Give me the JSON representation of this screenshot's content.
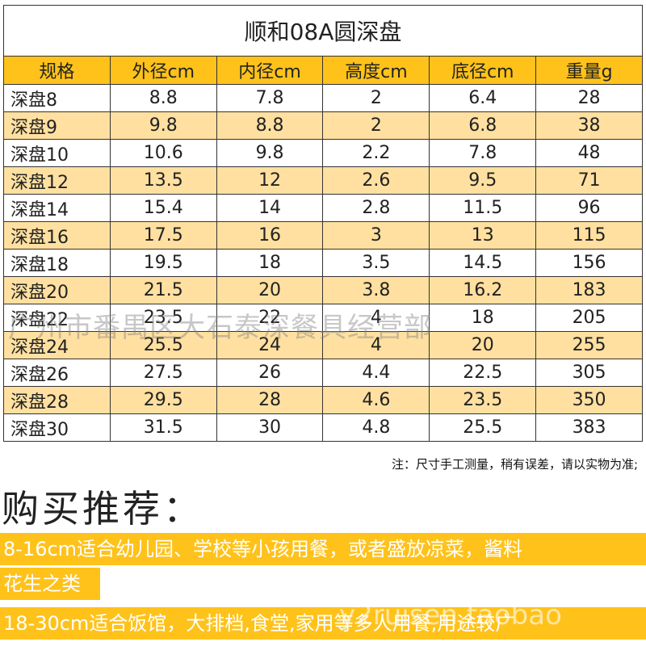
{
  "table": {
    "title": "顺和08A圆深盘",
    "headers": [
      "规格",
      "外径cm",
      "内径cm",
      "高度cm",
      "底径cm",
      "重量g"
    ],
    "rows": [
      [
        "深盘8",
        "8.8",
        "7.8",
        "2",
        "6.4",
        "28"
      ],
      [
        "深盘9",
        "9.8",
        "8.8",
        "2",
        "6.8",
        "38"
      ],
      [
        "深盘10",
        "10.6",
        "9.8",
        "2.2",
        "7.8",
        "48"
      ],
      [
        "深盘12",
        "13.5",
        "12",
        "2.6",
        "9.5",
        "71"
      ],
      [
        "深盘14",
        "15.4",
        "14",
        "2.8",
        "11.5",
        "96"
      ],
      [
        "深盘16",
        "17.5",
        "16",
        "3",
        "13",
        "115"
      ],
      [
        "深盘18",
        "19.5",
        "18",
        "3.5",
        "14.5",
        "156"
      ],
      [
        "深盘20",
        "21.5",
        "20",
        "3.8",
        "16.2",
        "183"
      ],
      [
        "深盘22",
        "23.5",
        "22",
        "4",
        "18",
        "205"
      ],
      [
        "深盘24",
        "25.5",
        "24",
        "4",
        "20",
        "255"
      ],
      [
        "深盘26",
        "27.5",
        "26",
        "4.4",
        "22.5",
        "305"
      ],
      [
        "深盘28",
        "29.5",
        "28",
        "4.6",
        "23.5",
        "350"
      ],
      [
        "深盘30",
        "31.5",
        "30",
        "4.8",
        "25.5",
        "383"
      ]
    ]
  },
  "watermark": "广州市番禺区大石泰深餐具经营部",
  "watermark2": "y2ruisen.taobao",
  "note": "注：尺寸手工测量，稍有误差，请以实物为准;",
  "recommend": {
    "title": "购买推荐：",
    "line1": "8-16cm适合幼儿园、学校等小孩用餐，或者盛放凉菜，酱料",
    "line1b": "花生之类",
    "line2": "18-30cm适合饭馆，大排档,食堂,家用等多人用餐,用途较广"
  }
}
